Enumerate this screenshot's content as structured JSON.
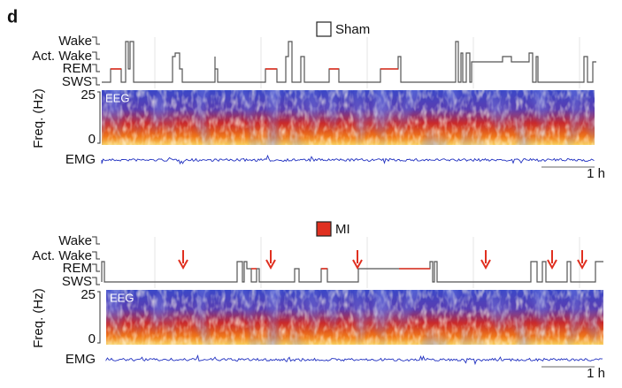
{
  "panel_label": "d",
  "panels": [
    {
      "legend": "Sham",
      "state_labels": [
        "Wake",
        "Act. Wake",
        "REM",
        "SWS"
      ],
      "freq_title": "Freq. (Hz)",
      "freq_ticks": [
        25,
        0
      ],
      "spectrogram_label": "EEG",
      "emg_label": "EMG",
      "scale_bar": "1 h"
    },
    {
      "legend": "MI",
      "state_labels": [
        "Wake",
        "Act. Wake",
        "REM",
        "SWS"
      ],
      "freq_title": "Freq. (Hz)",
      "freq_ticks": [
        25,
        0
      ],
      "spectrogram_label": "EEG",
      "emg_label": "EMG",
      "scale_bar": "1 h"
    }
  ]
}
